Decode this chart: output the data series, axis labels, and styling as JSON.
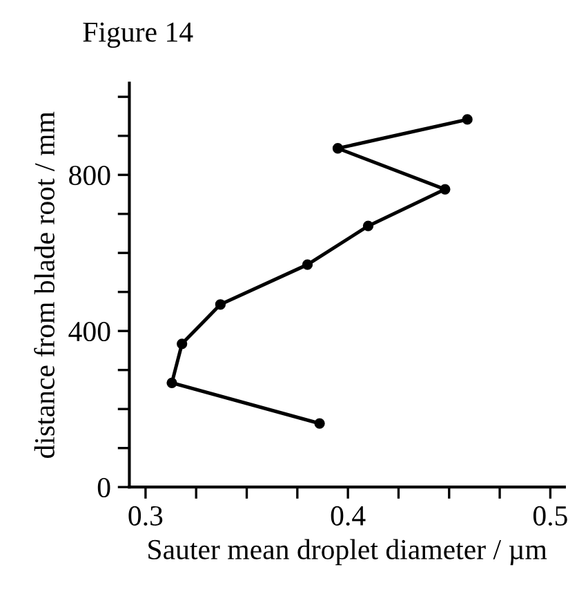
{
  "chart_data": {
    "type": "line",
    "title": "Figure 14",
    "xlabel": "Sauter mean droplet diameter / µm",
    "ylabel": "distance from blade root / mm",
    "x": [
      0.459,
      0.395,
      0.448,
      0.41,
      0.38,
      0.337,
      0.318,
      0.313,
      0.386
    ],
    "values": [
      942,
      868,
      763,
      669,
      570,
      468,
      367,
      267,
      163
    ],
    "color": "#000000",
    "marker": "circle",
    "line_style": "solid",
    "grid": false,
    "legend": false,
    "xlim": [
      0.292,
      0.507
    ],
    "ylim": [
      0,
      1035
    ],
    "xticks": [
      0.3,
      {
        "value": 0.325,
        "label": null
      },
      {
        "value": 0.35,
        "label": null
      },
      {
        "value": 0.375,
        "label": null
      },
      0.4,
      {
        "value": 0.425,
        "label": null
      },
      {
        "value": 0.45,
        "label": null
      },
      {
        "value": 0.475,
        "label": null
      },
      0.5
    ],
    "yticks": [
      0,
      {
        "value": 100,
        "label": null
      },
      {
        "value": 200,
        "label": null
      },
      {
        "value": 300,
        "label": null
      },
      400,
      {
        "value": 500,
        "label": null
      },
      {
        "value": 600,
        "label": null
      },
      {
        "value": 700,
        "label": null
      },
      800,
      {
        "value": 900,
        "label": null
      },
      {
        "value": 1000,
        "label": null
      }
    ]
  }
}
